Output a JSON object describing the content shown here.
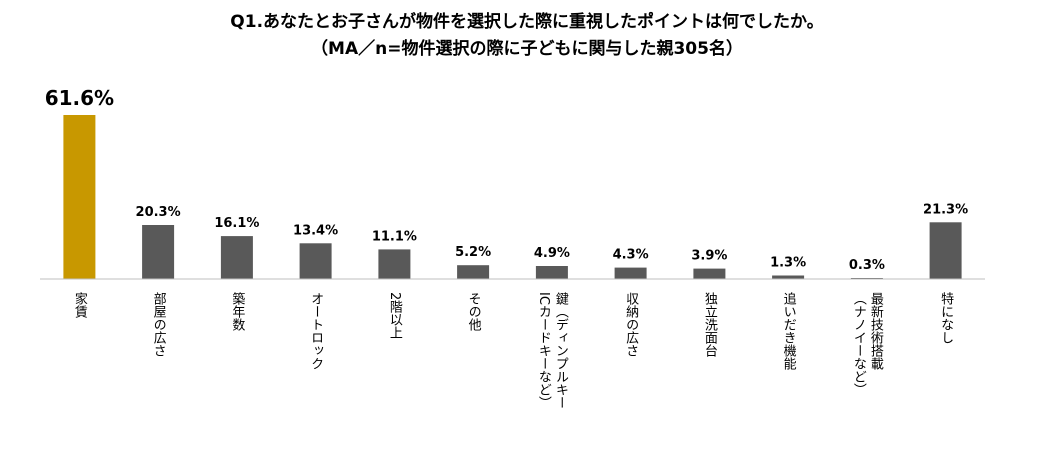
{
  "chart_data": {
    "type": "bar",
    "title": "Q1.あなたとお子さんが物件を選択した際に重視したポイントは何でしたか。",
    "subtitle": "（MA／n=物件選択の際に子どもに関与した親305名）",
    "categories": [
      "家賃",
      "部屋の広さ",
      "築年数",
      "オートロック",
      "2階以上",
      "その他",
      "鍵（ディンプルキー・ICカードキーなど）",
      "収納の広さ",
      "独立洗面台",
      "追いだき機能",
      "最新技術搭載（ナノイーなど）",
      "特になし"
    ],
    "category_lines": [
      [
        "家賃"
      ],
      [
        "部屋の広さ"
      ],
      [
        "築年数"
      ],
      [
        "オートロック"
      ],
      [
        "2階以上"
      ],
      [
        "その他"
      ],
      [
        "鍵（ディンプルキー",
        "ICカードキーなど）"
      ],
      [
        "収納の広さ"
      ],
      [
        "独立洗面台"
      ],
      [
        "追いだき機能"
      ],
      [
        "最新技術搭載",
        "（ナノイーなど）"
      ],
      [
        "特になし"
      ]
    ],
    "values": [
      61.6,
      20.3,
      16.1,
      13.4,
      11.1,
      5.2,
      4.9,
      4.3,
      3.9,
      1.3,
      0.3,
      21.3
    ],
    "value_labels": [
      "61.6%",
      "20.3%",
      "16.1%",
      "13.4%",
      "11.1%",
      "5.2%",
      "4.9%",
      "4.3%",
      "3.9%",
      "1.3%",
      "0.3%",
      "21.3%"
    ],
    "ylim": [
      0,
      61.6
    ],
    "colors": {
      "highlight": "#C89800",
      "default": "#595959",
      "axis": "#BFBFBF"
    },
    "highlight_index": 0,
    "grid": false,
    "legend": "none"
  }
}
